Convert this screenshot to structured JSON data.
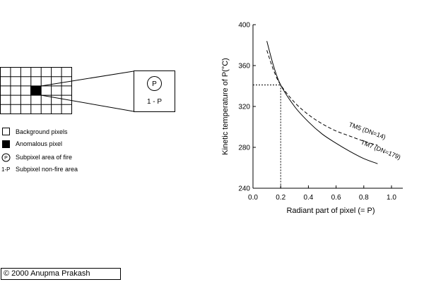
{
  "diagram": {
    "subpixel_fire_symbol": "P",
    "subpixel_nonfire_label": "1 - P",
    "legend": [
      {
        "symbol": "white-square",
        "label": "Background pixels"
      },
      {
        "symbol": "black-square",
        "label": "Anomalous pixel"
      },
      {
        "symbol": "P",
        "label": "Subpixel area of fire"
      },
      {
        "symbol": "1-P",
        "label": "Subpixel non-fire area"
      }
    ]
  },
  "chart_data": {
    "type": "line",
    "xlabel": "Radiant part of pixel (= P)",
    "ylabel": "Kinetic temperature of P(°C)",
    "xlim": [
      0.0,
      1.0
    ],
    "ylim": [
      240,
      400
    ],
    "x_ticks": [
      "0.0",
      "0.2",
      "0.4",
      "0.6",
      "0.8",
      "1.0"
    ],
    "y_ticks": [
      "240",
      "280",
      "320",
      "360",
      "400"
    ],
    "series": [
      {
        "name": "TM5 (DN=14)",
        "style": "dashed",
        "x": [
          0.1,
          0.15,
          0.2,
          0.3,
          0.4,
          0.5,
          0.6,
          0.7,
          0.8,
          0.9
        ],
        "y": [
          375,
          355,
          341,
          324,
          312,
          303,
          296,
          291,
          286,
          282
        ]
      },
      {
        "name": "TM7 (DN=179)",
        "style": "solid",
        "x": [
          0.1,
          0.15,
          0.2,
          0.3,
          0.4,
          0.5,
          0.6,
          0.7,
          0.8,
          0.9
        ],
        "y": [
          384,
          359,
          341,
          320,
          305,
          293,
          284,
          276,
          269,
          264
        ]
      }
    ],
    "reference_point": {
      "x": 0.2,
      "y": 341
    }
  },
  "copyright": "© 2000   Anupma Prakash"
}
